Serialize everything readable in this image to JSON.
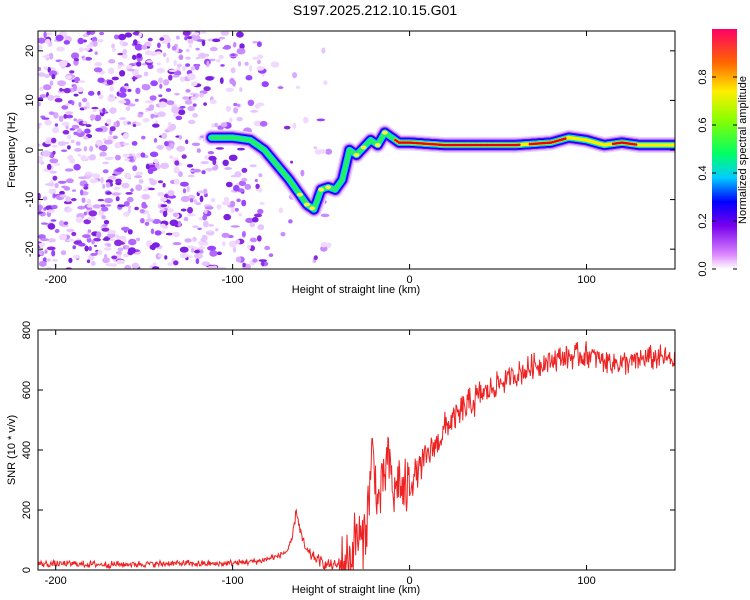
{
  "title": "S197.2025.212.10.15.G01",
  "colors": {
    "series": "#ee2222",
    "axis": "#000000"
  },
  "chart_data": [
    {
      "type": "heatmap",
      "xlabel": "Height of straight line (km)",
      "ylabel": "Frequency (Hz)",
      "xlim": [
        -210,
        150
      ],
      "ylim": [
        -24,
        24
      ],
      "x_ticks": [
        -200,
        -100,
        0,
        100
      ],
      "y_ticks": [
        20,
        10,
        0,
        -10,
        -20
      ],
      "colorbar": {
        "label": "Normalized spectral amplitude",
        "range": [
          0,
          1
        ],
        "ticks": [
          "0.0",
          "0.2",
          "0.4",
          "0.6",
          "0.8"
        ]
      },
      "ridge": {
        "x": [
          -112,
          -100,
          -90,
          -82,
          -75,
          -68,
          -62,
          -58,
          -54,
          -50,
          -46,
          -42,
          -38,
          -34,
          -30,
          -26,
          -22,
          -18,
          -14,
          -10,
          -6,
          0,
          20,
          40,
          60,
          80,
          90,
          100,
          110,
          120,
          130,
          150
        ],
        "y": [
          2.5,
          2.5,
          2.0,
          0.0,
          -3.0,
          -6.0,
          -9.0,
          -11.0,
          -12.0,
          -8.0,
          -7.5,
          -8.0,
          -6.0,
          0.0,
          -1.0,
          0.5,
          2.0,
          1.0,
          3.5,
          2.5,
          1.5,
          1.5,
          1.0,
          1.0,
          1.0,
          1.5,
          2.5,
          2.0,
          1.0,
          1.5,
          1.0,
          1.0
        ]
      }
    },
    {
      "type": "line",
      "xlabel": "Height of straight line (km)",
      "ylabel": "SNR (10 * v/v)",
      "xlim": [
        -210,
        150
      ],
      "ylim": [
        0,
        800
      ],
      "x_ticks": [
        -200,
        -100,
        0,
        100
      ],
      "y_ticks": [
        0,
        200,
        400,
        600,
        800
      ],
      "series": [
        {
          "x": [
            -210,
            -190,
            -170,
            -150,
            -130,
            -110,
            -95,
            -85,
            -75,
            -70,
            -67,
            -64,
            -62,
            -60,
            -58,
            -55,
            -52,
            -48,
            -44,
            -40,
            -36,
            -33,
            -30,
            -27,
            -24,
            -21,
            -18,
            -15,
            -12,
            -9,
            -6,
            -3,
            0,
            5,
            10,
            15,
            20,
            25,
            30,
            40,
            50,
            60,
            70,
            80,
            90,
            100,
            110,
            120,
            130,
            140,
            150
          ],
          "values": [
            20,
            20,
            18,
            20,
            22,
            20,
            25,
            30,
            45,
            60,
            80,
            200,
            140,
            90,
            60,
            45,
            35,
            20,
            15,
            15,
            20,
            50,
            120,
            90,
            180,
            400,
            220,
            300,
            380,
            250,
            300,
            260,
            280,
            340,
            380,
            420,
            470,
            500,
            530,
            580,
            620,
            650,
            680,
            700,
            710,
            720,
            700,
            690,
            700,
            710,
            700
          ]
        }
      ]
    }
  ]
}
